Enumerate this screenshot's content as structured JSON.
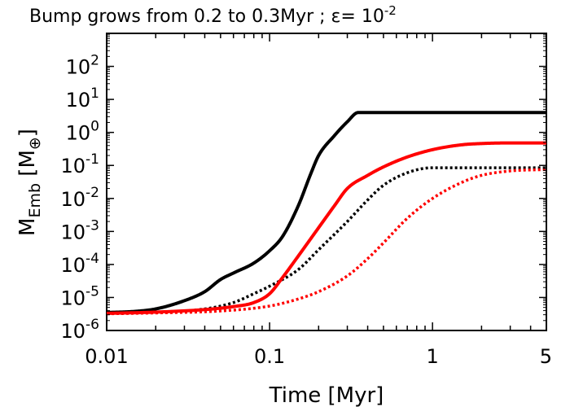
{
  "chart_data": {
    "type": "line",
    "title_main": "Bump grows from 0.2 to 0.3Myr ; ε= 10",
    "title_exp": "-2",
    "xlabel": "Time [Myr]",
    "ylabel_base": "M",
    "ylabel_sub": "Emb",
    "ylabel_unit_open": " [M",
    "ylabel_unit_sub": "⊕",
    "ylabel_unit_close": "]",
    "xscale": "log",
    "yscale": "log",
    "xlim": [
      0.01,
      5
    ],
    "ylim": [
      1e-06,
      1000
    ],
    "x_ticks": [
      {
        "value": 0.01,
        "label": "0.01"
      },
      {
        "value": 0.1,
        "label": "0.1"
      },
      {
        "value": 1,
        "label": "1"
      },
      {
        "value": 5,
        "label": "5"
      }
    ],
    "y_ticks": [
      {
        "value": 1e-06,
        "base": "10",
        "exp": "-6"
      },
      {
        "value": 1e-05,
        "base": "10",
        "exp": "-5"
      },
      {
        "value": 0.0001,
        "base": "10",
        "exp": "-4"
      },
      {
        "value": 0.001,
        "base": "10",
        "exp": "-3"
      },
      {
        "value": 0.01,
        "base": "10",
        "exp": "-2"
      },
      {
        "value": 0.1,
        "base": "10",
        "exp": "-1"
      },
      {
        "value": 1,
        "base": "10",
        "exp": "0"
      },
      {
        "value": 10,
        "base": "10",
        "exp": "1"
      },
      {
        "value": 100,
        "base": "10",
        "exp": "2"
      }
    ],
    "series": [
      {
        "name": "black-solid",
        "color": "#000000",
        "style": "solid",
        "x": [
          0.01,
          0.015,
          0.02,
          0.03,
          0.04,
          0.05,
          0.06,
          0.08,
          0.1,
          0.12,
          0.15,
          0.18,
          0.2,
          0.25,
          0.3,
          0.35,
          0.5,
          1,
          2,
          5
        ],
        "y": [
          3.5e-06,
          3.8e-06,
          4.5e-06,
          8e-06,
          1.5e-05,
          3.5e-05,
          5.5e-05,
          0.00011,
          0.00026,
          0.0007,
          0.006,
          0.06,
          0.2,
          0.8,
          2.1,
          4,
          4,
          4,
          4,
          4
        ]
      },
      {
        "name": "black-dotted",
        "color": "#000000",
        "style": "dotted",
        "x": [
          0.01,
          0.02,
          0.04,
          0.06,
          0.08,
          0.1,
          0.15,
          0.2,
          0.3,
          0.4,
          0.5,
          0.7,
          1,
          2,
          5
        ],
        "y": [
          3.3e-06,
          3.6e-06,
          4.5e-06,
          7e-06,
          1.3e-05,
          2.2e-05,
          7e-05,
          0.00028,
          0.002,
          0.009,
          0.025,
          0.06,
          0.085,
          0.085,
          0.085
        ]
      },
      {
        "name": "red-solid",
        "color": "#ff0000",
        "style": "solid",
        "x": [
          0.01,
          0.02,
          0.04,
          0.06,
          0.08,
          0.1,
          0.12,
          0.15,
          0.2,
          0.25,
          0.3,
          0.4,
          0.5,
          0.7,
          1,
          1.5,
          2,
          3,
          5
        ],
        "y": [
          3.3e-06,
          3.6e-06,
          4.3e-06,
          5.3e-06,
          7e-06,
          1.3e-05,
          4e-05,
          0.00018,
          0.0013,
          0.006,
          0.02,
          0.05,
          0.09,
          0.18,
          0.3,
          0.42,
          0.46,
          0.48,
          0.48
        ]
      },
      {
        "name": "red-dotted",
        "color": "#ff0000",
        "style": "dotted",
        "x": [
          0.01,
          0.02,
          0.05,
          0.1,
          0.15,
          0.2,
          0.3,
          0.4,
          0.5,
          0.7,
          1,
          1.5,
          2,
          3,
          5
        ],
        "y": [
          3.2e-06,
          3.4e-06,
          3.9e-06,
          5.5e-06,
          9e-06,
          1.5e-05,
          4.5e-05,
          0.00015,
          0.00045,
          0.0025,
          0.01,
          0.03,
          0.05,
          0.068,
          0.075
        ]
      }
    ]
  }
}
